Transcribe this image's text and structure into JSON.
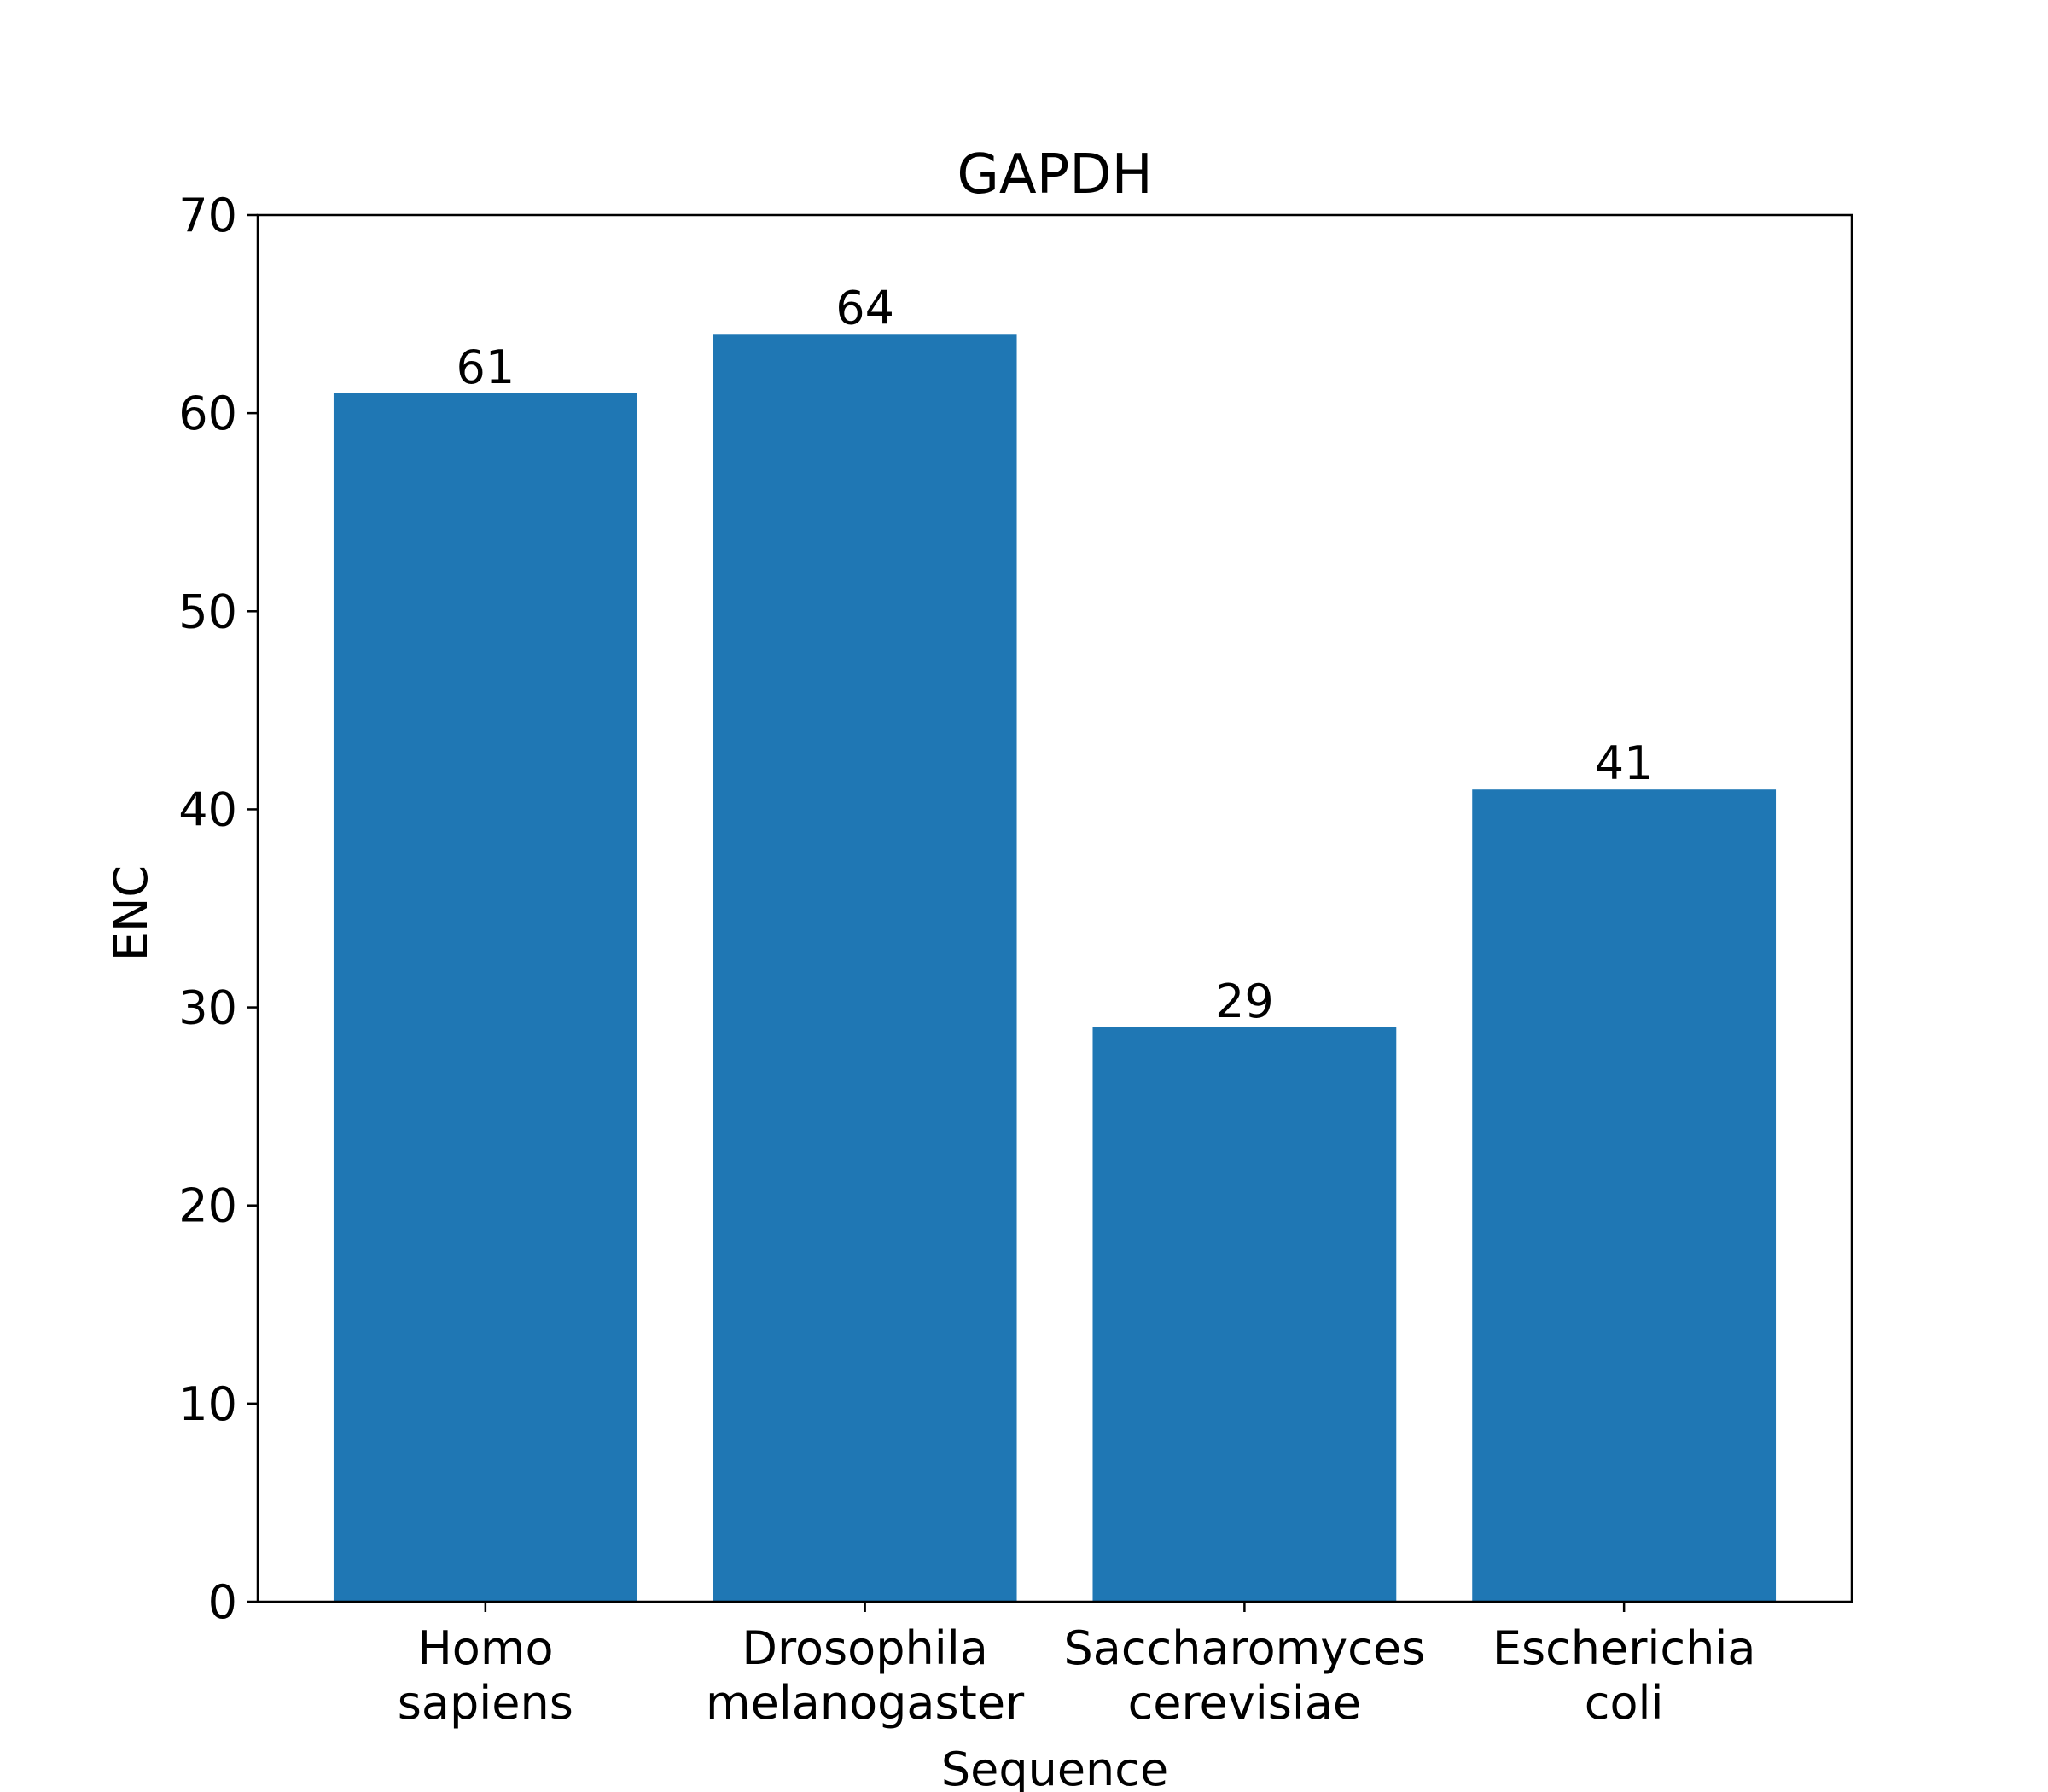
{
  "chart_data": {
    "type": "bar",
    "title": "GAPDH",
    "xlabel": "Sequence",
    "ylabel": "ENC",
    "categories": [
      [
        "Homo",
        "sapiens"
      ],
      [
        "Drosophila",
        "melanogaster"
      ],
      [
        "Saccharomyces",
        "cerevisiae"
      ],
      [
        "Escherichia",
        "coli"
      ]
    ],
    "values": [
      61,
      64,
      29,
      41
    ],
    "data_labels": [
      "61",
      "64",
      "29",
      "41"
    ],
    "ylim": [
      0,
      70
    ],
    "yticks": [
      "0",
      "10",
      "20",
      "30",
      "40",
      "50",
      "60",
      "70"
    ],
    "ytick_values": [
      0,
      10,
      20,
      30,
      40,
      50,
      60,
      70
    ],
    "grid": false,
    "legend": false,
    "colors": {
      "bar": "#1f77b4",
      "axis": "#000000",
      "background": "#ffffff"
    }
  }
}
